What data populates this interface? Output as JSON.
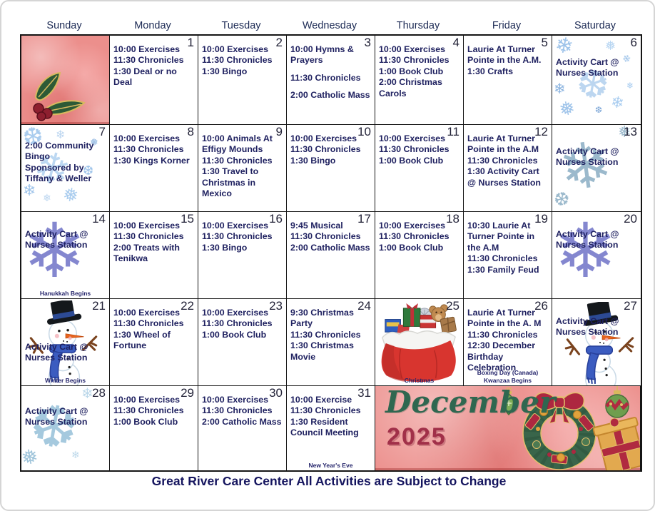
{
  "footer": "Great River Care Center All Activities are Subject to Change",
  "banner": {
    "month": "December",
    "year": "2025"
  },
  "day_headers": [
    "Sunday",
    "Monday",
    "Tuesday",
    "Wednesday",
    "Thursday",
    "Friday",
    "Saturday"
  ],
  "weeks": [
    [
      {
        "date": "",
        "activities": [],
        "decor": "holly",
        "pink_bg": true
      },
      {
        "date": "1",
        "activities": [
          "10:00 Exercises",
          "11:30 Chronicles",
          "1:30 Deal or no Deal"
        ]
      },
      {
        "date": "2",
        "activities": [
          "10:00 Exercises",
          "11:30 Chronicles",
          "1:30 Bingo"
        ]
      },
      {
        "date": "3",
        "activities": [
          "10:00 Hymns & Prayers",
          "",
          "11:30 Chronicles",
          "",
          "2:00 Catholic Mass"
        ]
      },
      {
        "date": "4",
        "activities": [
          "10:00 Exercises",
          "11:30 Chronicles",
          "1:00 Book Club",
          "2:00 Christmas Carols"
        ]
      },
      {
        "date": "5",
        "activities": [
          "Laurie At Turner Pointe in the A.M.",
          "1:30 Crafts"
        ]
      },
      {
        "date": "6",
        "activities": [
          "Activity Cart @ Nurses Station"
        ],
        "decor": "snowflakes_a"
      }
    ],
    [
      {
        "date": "7",
        "activities": [
          "2:00 Community Bingo",
          "Sponsored by Tiffany & Weller"
        ],
        "decor": "snowflakes_b"
      },
      {
        "date": "8",
        "activities": [
          "10:00 Exercises",
          "11:30 Chronicles",
          "1:30 Kings Korner"
        ]
      },
      {
        "date": "9",
        "activities": [
          "10:00 Animals At Effigy Mounds",
          "11:30 Chronicles",
          "1:30 Travel to Christmas in Mexico"
        ]
      },
      {
        "date": "10",
        "activities": [
          "10:00 Exercises",
          "11:30 Chronicles",
          "1:30 Bingo"
        ]
      },
      {
        "date": "11",
        "activities": [
          "10:00 Exercises",
          "11:30 Chronicles",
          "1:00 Book Club"
        ]
      },
      {
        "date": "12",
        "activities": [
          "Laurie At Turner Pointe in the A.M",
          "11:30 Chronicles",
          "1:30 Activity Cart @ Nurses Station"
        ]
      },
      {
        "date": "13",
        "activities": [
          "Activity Cart @ Nurses Station"
        ],
        "decor": "snowflake_big"
      }
    ],
    [
      {
        "date": "14",
        "activities": [
          "Activity Cart @ Nurses Station"
        ],
        "decor": "snowflake_purple",
        "holidays": [
          "Hanukkah Begins"
        ]
      },
      {
        "date": "15",
        "activities": [
          "10:00 Exercises",
          "11:30 Chronicles",
          "2:00 Treats with Tenikwa"
        ]
      },
      {
        "date": "16",
        "activities": [
          "10:00 Exercises",
          "11:30 Chronicles",
          "1:30 Bingo"
        ]
      },
      {
        "date": "17",
        "activities": [
          "9:45 Musical",
          "11:30 Chronicles",
          "2:00 Catholic Mass"
        ]
      },
      {
        "date": "18",
        "activities": [
          "10:00 Exercises",
          "11:30 Chronicles",
          "1:00 Book Club"
        ]
      },
      {
        "date": "19",
        "activities": [
          "10:30 Laurie At Turner Pointe in the A.M",
          "11:30 Chronicles",
          "1:30 Family Feud"
        ]
      },
      {
        "date": "20",
        "activities": [
          "Activity Cart @ Nurses Station"
        ],
        "decor": "snowflake_purple"
      }
    ],
    [
      {
        "date": "21",
        "activities": [
          "Activity Cart @ Nurses Station"
        ],
        "decor": "snowman_a",
        "holidays": [
          "Winter Begins"
        ]
      },
      {
        "date": "22",
        "activities": [
          "10:00 Exercises",
          "11:30 Chronicles",
          "1:30 Wheel of Fortune"
        ]
      },
      {
        "date": "23",
        "activities": [
          "10:00 Exercises",
          "11:30 Chronicles",
          "1:00 Book Club"
        ]
      },
      {
        "date": "24",
        "activities": [
          "9:30 Christmas Party",
          "11:30 Chronicles",
          "1:30 Christmas Movie"
        ]
      },
      {
        "date": "25",
        "activities": [],
        "decor": "santa_bag",
        "holidays": [
          "Christmas"
        ]
      },
      {
        "date": "26",
        "activities": [
          "Laurie At Turner Pointe in the A. M",
          "11:30 Chronicles",
          "12:30 December Birthday Celebration"
        ],
        "holidays": [
          "Boxing Day (Canada)",
          "Kwanzaa Begins"
        ]
      },
      {
        "date": "27",
        "activities": [
          "Activity Cart @ Nurses Station"
        ],
        "decor": "snowman_b"
      }
    ],
    [
      {
        "date": "28",
        "activities": [
          "Activity Cart @ Nurses Station"
        ],
        "decor": "snowflakes_c"
      },
      {
        "date": "29",
        "activities": [
          "10:00 Exercises",
          "11:30 Chronicles",
          "1:00 Book Club"
        ]
      },
      {
        "date": "30",
        "activities": [
          "10:00 Exercises",
          "11:30 Chronicles",
          "2:00 Catholic Mass"
        ]
      },
      {
        "date": "31",
        "activities": [
          "10:00 Exercise",
          "11:30 Chronicles",
          "1:30 Resident Council Meeting"
        ],
        "holidays": [
          "New Year's Eve"
        ]
      },
      {
        "banner": true
      }
    ]
  ],
  "colors": {
    "text_navy": "#1f2160",
    "banner_pink": "#ec8f8c",
    "banner_green": "#2f6750",
    "banner_red": "#a13049",
    "snowflake_blue": "#9fc4ea",
    "snowflake_purple": "#8487cf"
  }
}
